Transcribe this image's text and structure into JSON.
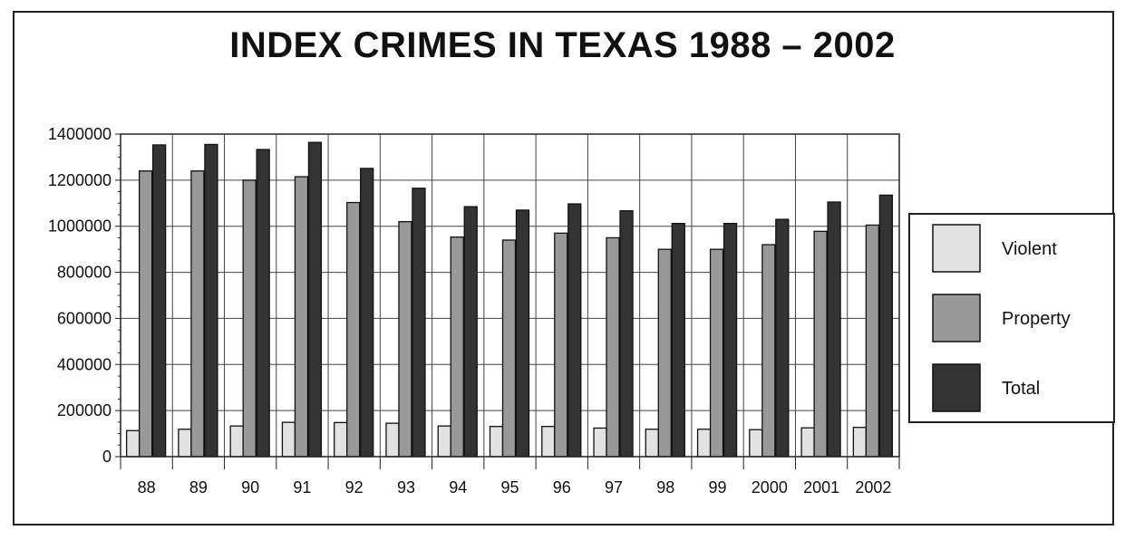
{
  "chart_data": {
    "type": "bar",
    "title": "INDEX CRIMES IN TEXAS 1988 – 2002",
    "categories": [
      "88",
      "89",
      "90",
      "91",
      "92",
      "93",
      "94",
      "95",
      "96",
      "97",
      "98",
      "99",
      "2000",
      "2001",
      "2002"
    ],
    "series": [
      {
        "name": "Violent",
        "color": "#e2e2e2",
        "values": [
          113000,
          119000,
          133000,
          149000,
          148000,
          145000,
          133000,
          131000,
          131000,
          124000,
          119000,
          119000,
          117000,
          125000,
          127000
        ]
      },
      {
        "name": "Property",
        "color": "#999999",
        "values": [
          1240000,
          1240000,
          1200000,
          1215000,
          1103000,
          1020000,
          953000,
          940000,
          970000,
          950000,
          900000,
          900000,
          920000,
          978000,
          1005000
        ]
      },
      {
        "name": "Total",
        "color": "#333333",
        "values": [
          1353000,
          1355000,
          1333000,
          1364000,
          1251000,
          1165000,
          1085000,
          1070000,
          1097000,
          1067000,
          1012000,
          1012000,
          1030000,
          1105000,
          1135000
        ]
      }
    ],
    "xlabel": "",
    "ylabel": "",
    "ylim": [
      0,
      1400000
    ],
    "yticks": [
      "0",
      "200000",
      "400000",
      "600000",
      "800000",
      "1000000",
      "1200000",
      "1400000"
    ],
    "grid": true,
    "legend_position": "right"
  }
}
